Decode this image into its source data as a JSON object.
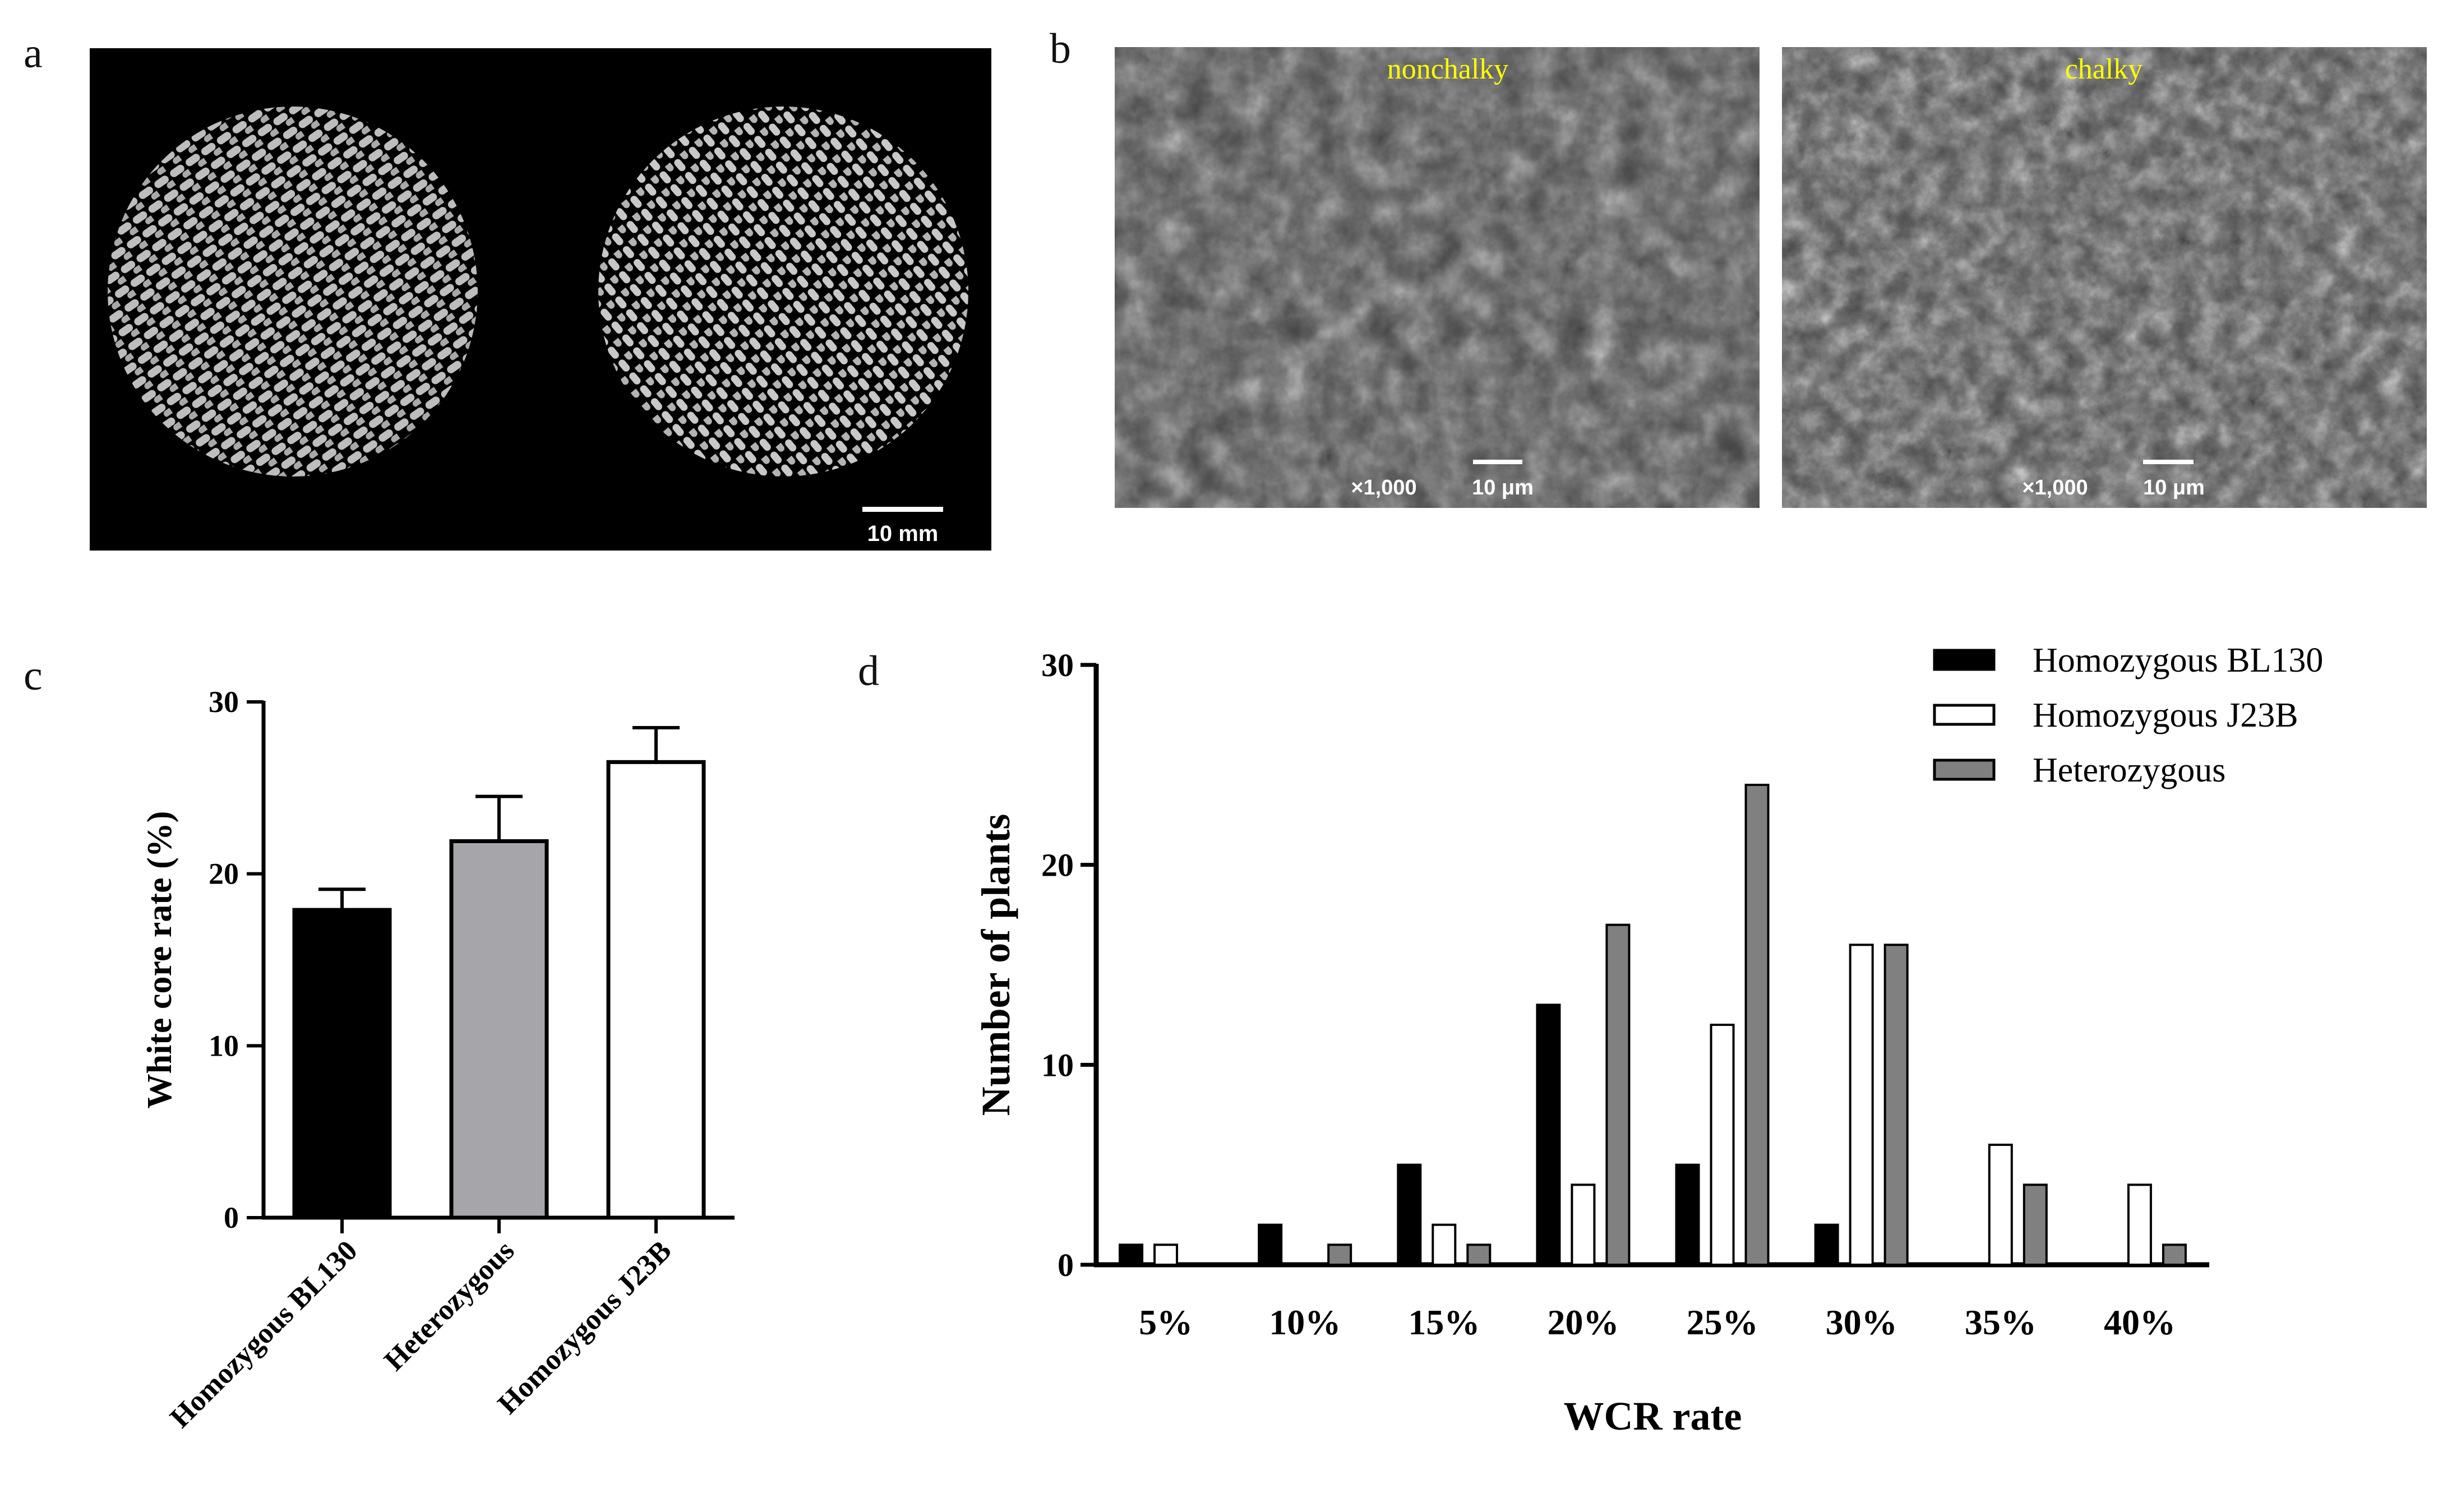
{
  "panels": {
    "a": {
      "letter": "a",
      "scale_bar_label": "10 mm"
    },
    "b": {
      "letter": "b",
      "left_image": {
        "title": "nonchalky",
        "magnification": "×1,000",
        "scale_bar_label": "10 μm"
      },
      "right_image": {
        "title": "chalky",
        "magnification": "×1,000",
        "scale_bar_label": "10 μm"
      },
      "title_color": "#ffff00"
    },
    "c": {
      "letter": "c"
    },
    "d": {
      "letter": "d"
    }
  },
  "chart_data": [
    {
      "panel": "c",
      "type": "bar",
      "categories": [
        "Homozygous BL130",
        "Heterozygous",
        "Homozygous J23B"
      ],
      "values": [
        17.9,
        21.9,
        26.5
      ],
      "errors": [
        1.2,
        2.6,
        2.0
      ],
      "colors": [
        "#000000",
        "#a6a6aa",
        "#ffffff"
      ],
      "title": "",
      "xlabel": "",
      "ylabel": "White core rate (%)",
      "ylim": [
        0,
        30
      ],
      "yticks": [
        0,
        10,
        20,
        30
      ],
      "grid": false
    },
    {
      "panel": "d",
      "type": "bar",
      "categories": [
        "5%",
        "10%",
        "15%",
        "20%",
        "25%",
        "30%",
        "35%",
        "40%"
      ],
      "series": [
        {
          "name": "Homozygous BL130",
          "color": "#000000",
          "values": [
            1,
            2,
            5,
            13,
            5,
            2,
            0,
            0
          ]
        },
        {
          "name": "Homozygous J23B",
          "color": "#ffffff",
          "values": [
            1,
            0,
            2,
            4,
            12,
            16,
            6,
            4
          ]
        },
        {
          "name": "Heterozygous",
          "color": "#808080",
          "values": [
            0,
            1,
            1,
            17,
            24,
            16,
            4,
            1
          ]
        }
      ],
      "title": "",
      "xlabel": "WCR rate",
      "ylabel": "Number of plants",
      "ylim": [
        0,
        30
      ],
      "yticks": [
        0,
        10,
        20,
        30
      ],
      "grid": false,
      "legend": "top-right"
    }
  ]
}
